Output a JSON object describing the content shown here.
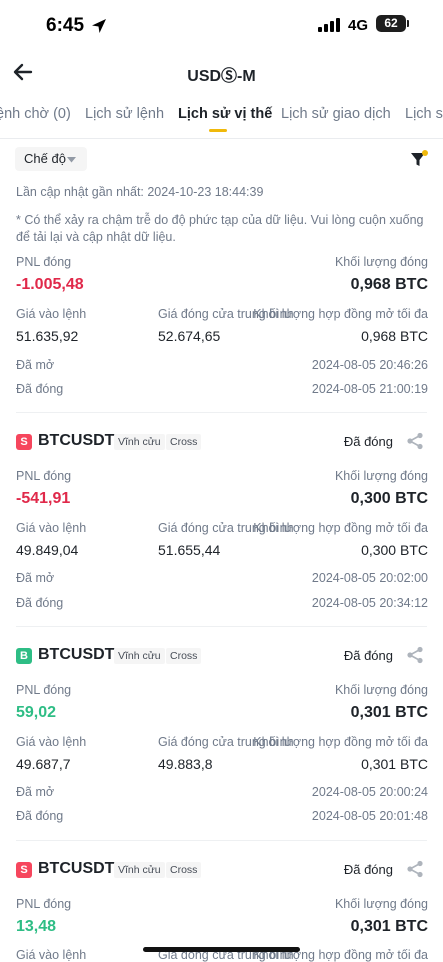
{
  "status_bar": {
    "time": "6:45",
    "network": "4G",
    "battery": "62"
  },
  "header": {
    "title": "USDⓈ-M",
    "back_icon": "arrow-left-icon"
  },
  "tabs": [
    {
      "label": "ệnh chờ (0)"
    },
    {
      "label": "Lịch sử lệnh"
    },
    {
      "label": "Lịch sử vị thế",
      "active": true
    },
    {
      "label": "Lịch sử giao dịch"
    },
    {
      "label": "Lịch s"
    }
  ],
  "filter": {
    "mode_label": "Chế độ",
    "filter_icon": "filter-icon"
  },
  "last_updated": "Lần cập nhật gần nhất: 2024-10-23 18:44:39",
  "note": "* Có thể xảy ra chậm trễ do độ phức tạp của dữ liệu. Vui lòng cuộn xuống để tải lại và cập nhật dữ liệu.",
  "labels": {
    "pnl": "PNL đóng",
    "volume": "Khối lượng đóng",
    "entry": "Giá vào lệnh",
    "avg_close": "Giá đóng cửa trung bình",
    "max_oi": "Khối lượng hợp đồng mở tối đa",
    "opened": "Đã mở",
    "closed": "Đã đóng"
  },
  "accent_colors": {
    "loss": "#e0294a",
    "profit": "#2ebd85",
    "brand": "#f0b90b"
  },
  "positions": [
    {
      "pnl": "-1.005,48",
      "volume": "0,968 BTC",
      "entry": "51.635,92",
      "avg_close": "52.674,65",
      "max_oi": "0,968 BTC",
      "opened": "2024-08-05 20:46:26",
      "closed": "2024-08-05 21:00:19"
    },
    {
      "side": "S",
      "symbol": "BTCUSDT",
      "contract": "Vĩnh cửu",
      "margin": "Cross",
      "status": "Đã đóng",
      "pnl": "-541,91",
      "volume": "0,300 BTC",
      "entry": "49.849,04",
      "avg_close": "51.655,44",
      "max_oi": "0,300 BTC",
      "opened": "2024-08-05 20:02:00",
      "closed": "2024-08-05 20:34:12"
    },
    {
      "side": "B",
      "symbol": "BTCUSDT",
      "contract": "Vĩnh cửu",
      "margin": "Cross",
      "status": "Đã đóng",
      "pnl": "59,02",
      "volume": "0,301 BTC",
      "entry": "49.687,7",
      "avg_close": "49.883,8",
      "max_oi": "0,301 BTC",
      "opened": "2024-08-05 20:00:24",
      "closed": "2024-08-05 20:01:48"
    },
    {
      "side": "S",
      "symbol": "BTCUSDT",
      "contract": "Vĩnh cửu",
      "margin": "Cross",
      "status": "Đã đóng",
      "pnl": "13,48",
      "volume": "0,301 BTC"
    }
  ]
}
